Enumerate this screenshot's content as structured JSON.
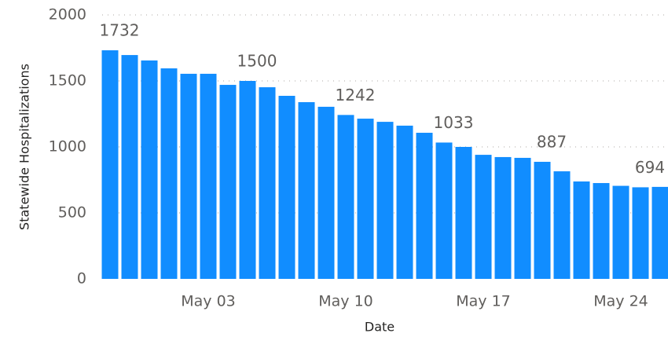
{
  "chart_data": {
    "type": "bar",
    "x_label": "Date",
    "y_label": "Statewide Hospitalizations",
    "categories": [
      null,
      null,
      null,
      null,
      null,
      "May 03",
      null,
      null,
      null,
      null,
      null,
      null,
      "May 10",
      null,
      null,
      null,
      null,
      null,
      null,
      "May 17",
      null,
      null,
      null,
      null,
      null,
      null,
      "May 24",
      null,
      null
    ],
    "values": [
      1732,
      1696,
      1655,
      1595,
      1554,
      1554,
      1470,
      1500,
      1452,
      1387,
      1339,
      1304,
      1242,
      1214,
      1190,
      1161,
      1107,
      1033,
      1000,
      940,
      923,
      917,
      887,
      815,
      738,
      726,
      705,
      694,
      697
    ],
    "value_labels": [
      "1732",
      null,
      null,
      null,
      null,
      null,
      null,
      "1500",
      null,
      null,
      null,
      null,
      "1242",
      null,
      null,
      null,
      null,
      "1033",
      null,
      null,
      null,
      null,
      "887",
      null,
      null,
      null,
      null,
      "694",
      null
    ],
    "color": "#118dff",
    "ylim": [
      0,
      2000
    ],
    "yticks": [
      0,
      500,
      1000,
      1500,
      2000
    ],
    "grid": true
  }
}
